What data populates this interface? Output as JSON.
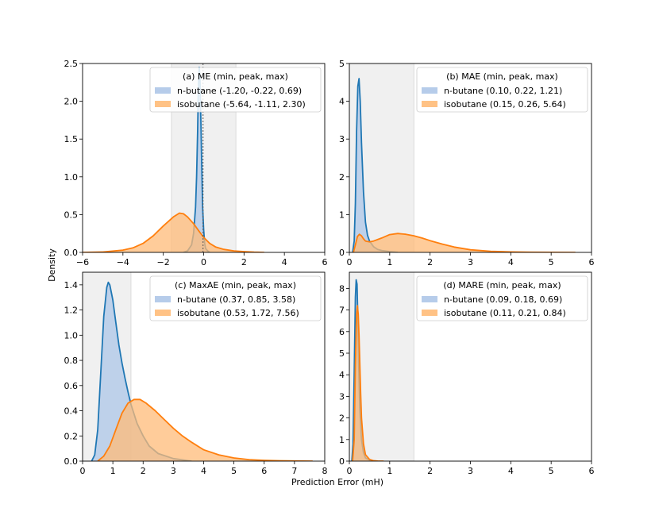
{
  "figure": {
    "ylabel": "Density",
    "xlabel": "Prediction Error (mH)"
  },
  "chart_data": [
    {
      "type": "area",
      "panel": "a",
      "legend_title": "(a)  ME (min, peak, max)",
      "legend_loc": "upper right",
      "xlim": [
        -6,
        6
      ],
      "ylim": [
        0,
        2.5
      ],
      "xticks": [
        -6,
        -4,
        -2,
        0,
        2,
        4,
        6
      ],
      "xtick_labels": [
        "−6",
        "−4",
        "−2",
        "0",
        "2",
        "4",
        "6"
      ],
      "yticks": [
        0.0,
        0.5,
        1.0,
        1.5,
        2.0,
        2.5
      ],
      "ytick_labels": [
        "0.0",
        "0.5",
        "1.0",
        "1.5",
        "2.0",
        "2.5"
      ],
      "shade": [
        -1.6,
        1.6
      ],
      "vline": -0.03,
      "series": [
        {
          "name": "n-butane",
          "legend": "n-butane  (-1.20, -0.22, 0.69)",
          "color": "#1f77b4",
          "fill": "#aec7e8",
          "x": [
            -1.0,
            -0.8,
            -0.6,
            -0.5,
            -0.4,
            -0.35,
            -0.3,
            -0.26,
            -0.22,
            -0.18,
            -0.14,
            -0.1,
            -0.05,
            0.0,
            0.05,
            0.1,
            0.2,
            0.3
          ],
          "y": [
            0.0,
            0.02,
            0.1,
            0.25,
            0.6,
            1.0,
            1.6,
            2.2,
            2.45,
            2.3,
            1.8,
            1.2,
            0.6,
            0.3,
            0.12,
            0.05,
            0.02,
            0.0
          ]
        },
        {
          "name": "isobutane",
          "legend": "isobutane (-5.64, -1.11, 2.30)",
          "color": "#ff7f0e",
          "fill": "#ffbb78",
          "x": [
            -6.0,
            -5.0,
            -4.0,
            -3.5,
            -3.0,
            -2.5,
            -2.0,
            -1.5,
            -1.2,
            -1.0,
            -0.8,
            -0.5,
            -0.2,
            0.0,
            0.3,
            0.6,
            1.0,
            1.5,
            2.0,
            2.5,
            3.0
          ],
          "y": [
            0.0,
            0.005,
            0.03,
            0.06,
            0.12,
            0.22,
            0.35,
            0.47,
            0.52,
            0.51,
            0.47,
            0.38,
            0.27,
            0.2,
            0.12,
            0.07,
            0.04,
            0.02,
            0.01,
            0.003,
            0.0
          ]
        }
      ]
    },
    {
      "type": "area",
      "panel": "b",
      "legend_title": "(b)  MAE (min, peak, max)",
      "legend_loc": "upper right",
      "xlim": [
        0,
        6
      ],
      "ylim": [
        0,
        5
      ],
      "xticks": [
        0,
        1,
        2,
        3,
        4,
        5,
        6
      ],
      "xtick_labels": [
        "0",
        "1",
        "2",
        "3",
        "4",
        "5",
        "6"
      ],
      "yticks": [
        0,
        1,
        2,
        3,
        4,
        5
      ],
      "ytick_labels": [
        "0",
        "1",
        "2",
        "3",
        "4",
        "5"
      ],
      "shade": [
        0.0,
        1.6
      ],
      "series": [
        {
          "name": "n-butane",
          "legend": "n-butane  (0.10, 0.22, 1.21)",
          "color": "#1f77b4",
          "fill": "#aec7e8",
          "x": [
            0.08,
            0.12,
            0.15,
            0.18,
            0.21,
            0.24,
            0.27,
            0.3,
            0.35,
            0.4,
            0.45,
            0.5,
            0.6,
            0.7,
            0.8,
            1.0,
            1.2
          ],
          "y": [
            0.0,
            0.3,
            1.3,
            3.2,
            4.4,
            4.6,
            4.0,
            2.9,
            1.6,
            0.8,
            0.45,
            0.3,
            0.15,
            0.08,
            0.05,
            0.02,
            0.0
          ]
        },
        {
          "name": "isobutane",
          "legend": "isobutane (0.15, 0.26, 5.64)",
          "color": "#ff7f0e",
          "fill": "#ffbb78",
          "x": [
            0.1,
            0.15,
            0.2,
            0.25,
            0.3,
            0.35,
            0.4,
            0.5,
            0.6,
            0.8,
            1.0,
            1.2,
            1.4,
            1.6,
            1.8,
            2.0,
            2.3,
            2.6,
            3.0,
            3.5,
            4.0,
            4.5,
            5.0,
            5.6
          ],
          "y": [
            0.0,
            0.2,
            0.42,
            0.48,
            0.44,
            0.36,
            0.3,
            0.28,
            0.3,
            0.38,
            0.47,
            0.5,
            0.48,
            0.44,
            0.38,
            0.31,
            0.22,
            0.14,
            0.07,
            0.03,
            0.012,
            0.005,
            0.002,
            0.0
          ]
        }
      ]
    },
    {
      "type": "area",
      "panel": "c",
      "legend_title": "(c)  MaxAE (min, peak, max)",
      "legend_loc": "upper right",
      "xlim": [
        0,
        8
      ],
      "ylim": [
        0,
        1.5
      ],
      "xticks": [
        0,
        1,
        2,
        3,
        4,
        5,
        6,
        7,
        8
      ],
      "xtick_labels": [
        "0",
        "1",
        "2",
        "3",
        "4",
        "5",
        "6",
        "7",
        "8"
      ],
      "yticks": [
        0.0,
        0.2,
        0.4,
        0.6,
        0.8,
        1.0,
        1.2,
        1.4
      ],
      "ytick_labels": [
        "0.0",
        "0.2",
        "0.4",
        "0.6",
        "0.8",
        "1.0",
        "1.2",
        "1.4"
      ],
      "shade": [
        0.0,
        1.6
      ],
      "series": [
        {
          "name": "n-butane",
          "legend": "n-butane  (0.37, 0.85, 3.58)",
          "color": "#1f77b4",
          "fill": "#aec7e8",
          "x": [
            0.3,
            0.4,
            0.5,
            0.6,
            0.7,
            0.8,
            0.85,
            0.9,
            1.0,
            1.1,
            1.2,
            1.3,
            1.4,
            1.5,
            1.6,
            1.8,
            2.0,
            2.2,
            2.5,
            3.0,
            3.6
          ],
          "y": [
            0.0,
            0.05,
            0.25,
            0.7,
            1.15,
            1.38,
            1.42,
            1.4,
            1.28,
            1.1,
            0.92,
            0.78,
            0.66,
            0.55,
            0.45,
            0.3,
            0.2,
            0.12,
            0.06,
            0.02,
            0.0
          ]
        },
        {
          "name": "isobutane",
          "legend": "isobutane (0.53, 1.72, 7.56)",
          "color": "#ff7f0e",
          "fill": "#ffbb78",
          "x": [
            0.5,
            0.7,
            0.9,
            1.1,
            1.3,
            1.5,
            1.7,
            1.9,
            2.1,
            2.4,
            2.7,
            3.0,
            3.3,
            3.6,
            4.0,
            4.5,
            5.0,
            5.5,
            6.0,
            6.5,
            7.0,
            7.6
          ],
          "y": [
            0.0,
            0.04,
            0.12,
            0.25,
            0.38,
            0.46,
            0.49,
            0.49,
            0.46,
            0.4,
            0.33,
            0.26,
            0.2,
            0.15,
            0.09,
            0.05,
            0.025,
            0.012,
            0.006,
            0.003,
            0.001,
            0.0
          ]
        }
      ]
    },
    {
      "type": "area",
      "panel": "d",
      "legend_title": "(d)  MARE (min, peak, max)",
      "legend_loc": "upper right",
      "xlim": [
        0,
        6
      ],
      "ylim": [
        0,
        8.75
      ],
      "xticks": [
        0,
        1,
        2,
        3,
        4,
        5,
        6
      ],
      "xtick_labels": [
        "0",
        "1",
        "2",
        "3",
        "4",
        "5",
        "6"
      ],
      "yticks": [
        0,
        1,
        2,
        3,
        4,
        5,
        6,
        7,
        8
      ],
      "ytick_labels": [
        "0",
        "1",
        "2",
        "3",
        "4",
        "5",
        "6",
        "7",
        "8"
      ],
      "shade": [
        0.0,
        1.6
      ],
      "series": [
        {
          "name": "n-butane",
          "legend": "n-butane  (0.09, 0.18, 0.69)",
          "color": "#1f77b4",
          "fill": "#aec7e8",
          "x": [
            0.06,
            0.09,
            0.12,
            0.15,
            0.17,
            0.19,
            0.21,
            0.23,
            0.26,
            0.3,
            0.35,
            0.4,
            0.5,
            0.6,
            0.7
          ],
          "y": [
            0.0,
            0.8,
            4.0,
            7.6,
            8.4,
            8.2,
            6.6,
            4.6,
            2.4,
            1.0,
            0.4,
            0.15,
            0.05,
            0.01,
            0.0
          ]
        },
        {
          "name": "isobutane",
          "legend": "isobutane (0.11, 0.21, 0.84)",
          "color": "#ff7f0e",
          "fill": "#ffbb78",
          "x": [
            0.08,
            0.12,
            0.15,
            0.18,
            0.2,
            0.22,
            0.24,
            0.26,
            0.28,
            0.3,
            0.35,
            0.4,
            0.5,
            0.6,
            0.7,
            0.85
          ],
          "y": [
            0.0,
            1.0,
            4.5,
            6.8,
            7.2,
            6.8,
            5.8,
            4.5,
            3.2,
            2.0,
            0.8,
            0.3,
            0.08,
            0.02,
            0.005,
            0.0
          ]
        }
      ]
    }
  ]
}
